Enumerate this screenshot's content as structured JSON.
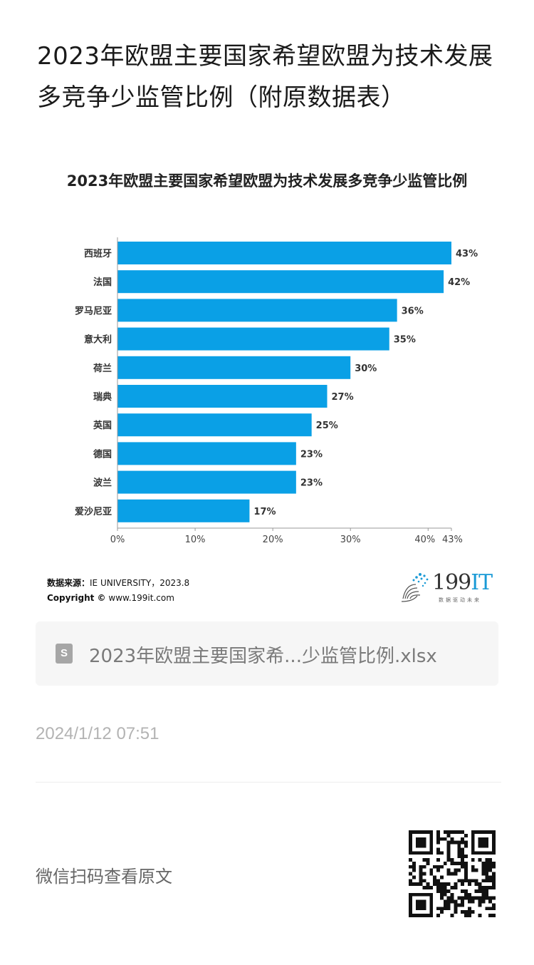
{
  "article": {
    "title": "2023年欧盟主要国家希望欧盟为技术发展多竞争少监管比例（附原数据表）"
  },
  "chart_data": {
    "type": "bar",
    "orientation": "horizontal",
    "title": "2023年欧盟主要国家希望欧盟为技术发展多竞争少监管比例",
    "categories": [
      "西班牙",
      "法国",
      "罗马尼亚",
      "意大利",
      "荷兰",
      "瑞典",
      "英国",
      "德国",
      "波兰",
      "爱沙尼亚"
    ],
    "values": [
      43,
      42,
      36,
      35,
      30,
      27,
      25,
      23,
      23,
      17
    ],
    "value_labels": [
      "43%",
      "42%",
      "36%",
      "35%",
      "30%",
      "27%",
      "25%",
      "23%",
      "23%",
      "17%"
    ],
    "xlim": [
      0,
      43
    ],
    "x_ticks": [
      0,
      10,
      20,
      30,
      40,
      43
    ],
    "x_tick_labels": [
      "0%",
      "10%",
      "20%",
      "30%",
      "40%",
      "43%"
    ],
    "bar_color": "#0aa0e6",
    "grid": false,
    "legend": "none"
  },
  "source": {
    "label": "数据来源：",
    "text": "IE UNIVERSITY，2023.8",
    "copyright_label": "Copyright ©",
    "copyright_text": "www.199it.com"
  },
  "logo": {
    "text_num": "199",
    "text_it": "IT",
    "tagline": "数据驱动未来"
  },
  "attachment": {
    "icon": "spreadsheet-file-icon",
    "icon_letter": "S",
    "file_name": "2023年欧盟主要国家希...少监管比例.xlsx"
  },
  "meta": {
    "timestamp": "2024/1/12 07:51"
  },
  "footer": {
    "qr_caption": "微信扫码查看原文",
    "qr_icon": "qr-code-icon"
  }
}
